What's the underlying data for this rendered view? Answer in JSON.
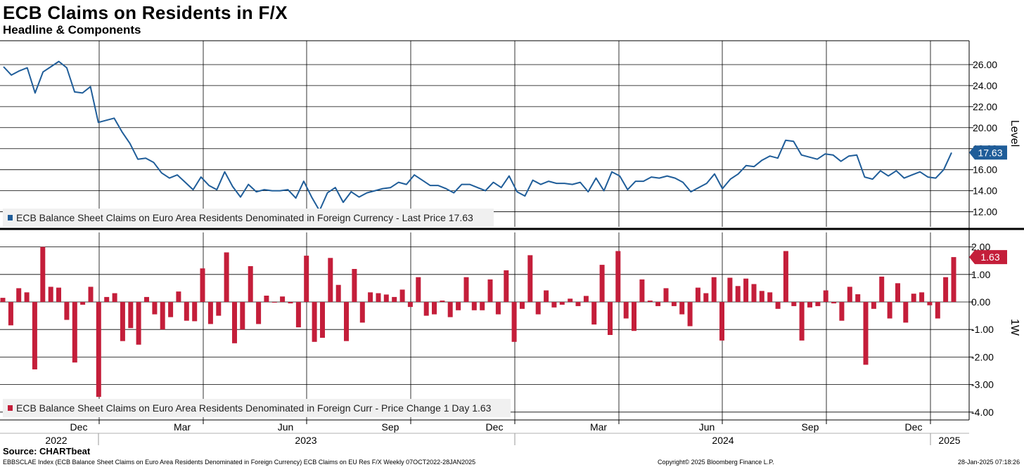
{
  "header": {
    "title": "ECB Claims on Residents in F/X",
    "subtitle": "Headline & Components"
  },
  "footer": {
    "source": "Source: CHARTbeat",
    "description": "EBBSCLAE Index (ECB Balance Sheet Claims on Euro Area Residents Denominated in Foreign Currency) ECB Claims on EU Res F/X  Weekly 07OCT2022-28JAN2025",
    "copyright": "Copyright© 2025 Bloomberg Finance L.P.",
    "timestamp": "28-Jan-2025 07:18:26"
  },
  "colors": {
    "line": "#1f5d99",
    "bar": "#c41e3a",
    "grid": "#000000"
  },
  "chart_data": [
    {
      "type": "line",
      "ylabel": "Level",
      "ylim": [
        10.5,
        27.5
      ],
      "yticks": [
        "26.00",
        "24.00",
        "22.00",
        "20.00",
        "18.00",
        "16.00",
        "14.00",
        "12.00"
      ],
      "last_value_label": "17.63",
      "legend": "ECB Balance Sheet Claims on Euro Area Residents Denominated in Foreign Currency - Last Price 17.63",
      "legend_position": "bottom-left",
      "grid": true,
      "series": [
        {
          "values": [
            25.8,
            25.0,
            25.4,
            25.7,
            23.3,
            25.3,
            25.8,
            26.3,
            25.7,
            23.4,
            23.3,
            23.9,
            20.5,
            20.7,
            20.9,
            19.6,
            18.5,
            17.0,
            17.1,
            16.7,
            15.7,
            15.2,
            15.5,
            14.8,
            14.1,
            15.3,
            14.5,
            14.1,
            15.8,
            14.4,
            13.4,
            14.6,
            13.9,
            14.1,
            14.0,
            14.0,
            14.1,
            13.3,
            14.9,
            13.4,
            12.1,
            13.8,
            14.3,
            12.9,
            13.9,
            13.4,
            13.8,
            14.0,
            14.2,
            14.3,
            14.8,
            14.6,
            15.5,
            15.0,
            14.5,
            14.5,
            14.2,
            13.8,
            14.6,
            14.6,
            14.3,
            14.0,
            14.8,
            14.3,
            15.4,
            13.9,
            13.5,
            15.0,
            14.6,
            14.9,
            14.7,
            14.7,
            14.6,
            14.8,
            13.9,
            15.2,
            14.0,
            15.8,
            15.4,
            14.1,
            14.9,
            14.9,
            15.3,
            15.2,
            15.4,
            15.2,
            14.8,
            13.9,
            14.3,
            14.7,
            15.6,
            14.2,
            15.1,
            15.6,
            16.4,
            16.3,
            16.9,
            17.3,
            17.1,
            18.8,
            18.7,
            17.4,
            17.2,
            17.0,
            17.5,
            17.4,
            16.8,
            17.3,
            17.4,
            15.3,
            15.1,
            15.9,
            15.4,
            15.9,
            15.2,
            15.5,
            15.8,
            15.3,
            15.2,
            16.0,
            17.63
          ]
        }
      ],
      "x_month_labels": [
        "Dec",
        "Mar",
        "Jun",
        "Sep",
        "Dec",
        "Mar",
        "Jun",
        "Sep",
        "Dec"
      ],
      "x_year_labels": [
        "2022",
        "2023",
        "2024",
        "2025"
      ]
    },
    {
      "type": "bar",
      "ylabel": "1W",
      "ylim": [
        -4.2,
        2.3
      ],
      "yticks": [
        "2.00",
        "1.00",
        "0.00",
        "-1.00",
        "-2.00",
        "-3.00",
        "-4.00"
      ],
      "last_value_label": "1.63",
      "legend": "ECB Balance Sheet Claims on Euro Area Residents Denominated in Foreign Curr - Price Change 1 Day 1.63",
      "legend_position": "bottom-left",
      "grid": true,
      "series": [
        {
          "values": [
            0.15,
            -0.85,
            0.5,
            0.35,
            -2.45,
            2.0,
            0.55,
            0.52,
            -0.65,
            -2.2,
            -0.1,
            0.55,
            -3.45,
            0.18,
            0.32,
            -1.42,
            -0.95,
            -1.55,
            0.18,
            -0.45,
            -1.0,
            -0.55,
            0.38,
            -0.68,
            -0.7,
            1.22,
            -0.8,
            -0.5,
            1.8,
            -1.5,
            -1.0,
            1.3,
            -0.8,
            0.23,
            -0.02,
            0.2,
            -0.05,
            -0.92,
            1.68,
            -1.45,
            -1.3,
            1.6,
            0.62,
            -1.42,
            1.2,
            -0.75,
            0.35,
            0.32,
            0.27,
            0.18,
            0.45,
            -0.18,
            0.9,
            -0.5,
            -0.45,
            0.05,
            -0.55,
            -0.3,
            0.9,
            -0.3,
            -0.3,
            0.82,
            -0.45,
            1.15,
            -1.45,
            -0.25,
            1.7,
            -0.45,
            0.42,
            -0.2,
            -0.1,
            0.12,
            -0.15,
            0.22,
            -0.82,
            1.35,
            -1.2,
            1.85,
            -0.6,
            -1.05,
            0.82,
            0.05,
            -0.15,
            0.5,
            -0.15,
            -0.45,
            -0.88,
            0.52,
            0.32,
            0.9,
            -1.4,
            0.88,
            0.58,
            0.85,
            0.65,
            0.4,
            0.35,
            -0.25,
            1.85,
            -0.15,
            -1.4,
            -0.2,
            -0.15,
            0.42,
            -0.05,
            -0.68,
            0.55,
            0.28,
            -2.28,
            -0.25,
            0.92,
            -0.6,
            0.68,
            -0.75,
            0.3,
            0.35,
            -0.12,
            -0.6,
            0.9,
            1.63
          ]
        }
      ]
    }
  ]
}
